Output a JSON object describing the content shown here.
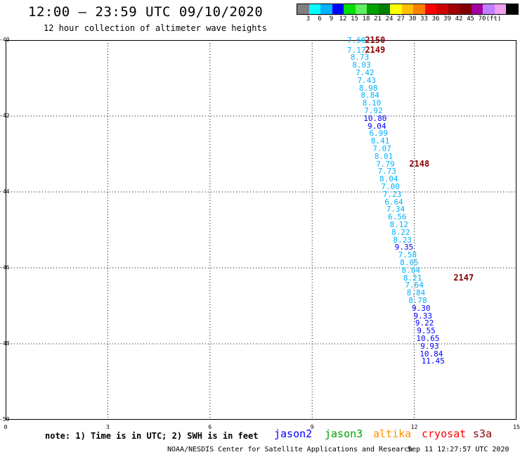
{
  "header": {
    "title": "12:00 – 23:59 UTC 09/10/2020",
    "subtitle": "12 hour collection of altimeter wave heights"
  },
  "colorbar": {
    "colors": [
      "#808080",
      "#00ffff",
      "#00b4ff",
      "#0000ff",
      "#00e000",
      "#60f060",
      "#00a000",
      "#008000",
      "#ffff00",
      "#ffc000",
      "#ff8000",
      "#ff0000",
      "#d00000",
      "#a00000",
      "#800000",
      "#a000a0",
      "#c080ff",
      "#f0a0f0",
      "#000000"
    ],
    "labels": [
      "3",
      "6",
      "9",
      "12",
      "15",
      "18",
      "21",
      "24",
      "27",
      "30",
      "33",
      "36",
      "39",
      "42",
      "45",
      "70",
      "(ft)"
    ]
  },
  "chart_data": {
    "type": "scatter",
    "xlim": [
      0,
      15
    ],
    "ylim": [
      -50,
      -40
    ],
    "x_ticks": [
      "0",
      "3",
      "6",
      "9",
      "12",
      "15"
    ],
    "y_ticks": [
      "-40",
      "-42",
      "-44",
      "-46",
      "-48",
      "-50"
    ],
    "grid": true,
    "points": [
      {
        "lon": 10.3,
        "lat": -40.0,
        "swh": "7.60",
        "color": "#00b4ff"
      },
      {
        "lon": 10.3,
        "lat": -40.25,
        "swh": "7.17",
        "color": "#00b4ff"
      },
      {
        "lon": 10.4,
        "lat": -40.45,
        "swh": "8.73",
        "color": "#00b4ff"
      },
      {
        "lon": 10.45,
        "lat": -40.65,
        "swh": "8.03",
        "color": "#00b4ff"
      },
      {
        "lon": 10.55,
        "lat": -40.85,
        "swh": "7.42",
        "color": "#00b4ff"
      },
      {
        "lon": 10.6,
        "lat": -41.05,
        "swh": "7.43",
        "color": "#00b4ff"
      },
      {
        "lon": 10.65,
        "lat": -41.25,
        "swh": "8.98",
        "color": "#00b4ff"
      },
      {
        "lon": 10.7,
        "lat": -41.45,
        "swh": "8.84",
        "color": "#00b4ff"
      },
      {
        "lon": 10.75,
        "lat": -41.65,
        "swh": "8.10",
        "color": "#00b4ff"
      },
      {
        "lon": 10.8,
        "lat": -41.85,
        "swh": "7.92",
        "color": "#00b4ff"
      },
      {
        "lon": 10.85,
        "lat": -42.05,
        "swh": "10.80",
        "color": "#0000ff"
      },
      {
        "lon": 10.9,
        "lat": -42.25,
        "swh": "9.04",
        "color": "#0000ff"
      },
      {
        "lon": 10.95,
        "lat": -42.45,
        "swh": "6.99",
        "color": "#00b4ff"
      },
      {
        "lon": 11.0,
        "lat": -42.65,
        "swh": "8.41",
        "color": "#00b4ff"
      },
      {
        "lon": 11.05,
        "lat": -42.85,
        "swh": "7.07",
        "color": "#00b4ff"
      },
      {
        "lon": 11.1,
        "lat": -43.05,
        "swh": "8.01",
        "color": "#00b4ff"
      },
      {
        "lon": 11.15,
        "lat": -43.25,
        "swh": "7.79",
        "color": "#00b4ff"
      },
      {
        "lon": 11.2,
        "lat": -43.45,
        "swh": "7.73",
        "color": "#00b4ff"
      },
      {
        "lon": 11.25,
        "lat": -43.65,
        "swh": "8.04",
        "color": "#00b4ff"
      },
      {
        "lon": 11.3,
        "lat": -43.85,
        "swh": "7.00",
        "color": "#00b4ff"
      },
      {
        "lon": 11.35,
        "lat": -44.05,
        "swh": "7.23",
        "color": "#00b4ff"
      },
      {
        "lon": 11.4,
        "lat": -44.25,
        "swh": "6.64",
        "color": "#00b4ff"
      },
      {
        "lon": 11.45,
        "lat": -44.45,
        "swh": "7.34",
        "color": "#00b4ff"
      },
      {
        "lon": 11.5,
        "lat": -44.65,
        "swh": "6.56",
        "color": "#00b4ff"
      },
      {
        "lon": 11.55,
        "lat": -44.85,
        "swh": "8.12",
        "color": "#00b4ff"
      },
      {
        "lon": 11.6,
        "lat": -45.05,
        "swh": "8.22",
        "color": "#00b4ff"
      },
      {
        "lon": 11.65,
        "lat": -45.25,
        "swh": "8.23",
        "color": "#00b4ff"
      },
      {
        "lon": 11.7,
        "lat": -45.45,
        "swh": "9.35",
        "color": "#0000ff"
      },
      {
        "lon": 11.8,
        "lat": -45.65,
        "swh": "7.58",
        "color": "#00b4ff"
      },
      {
        "lon": 11.85,
        "lat": -45.85,
        "swh": "8.05",
        "color": "#00b4ff"
      },
      {
        "lon": 11.9,
        "lat": -46.05,
        "swh": "8.04",
        "color": "#00b4ff"
      },
      {
        "lon": 11.95,
        "lat": -46.25,
        "swh": "8.21",
        "color": "#00b4ff"
      },
      {
        "lon": 12.0,
        "lat": -46.45,
        "swh": "7.64",
        "color": "#00b4ff"
      },
      {
        "lon": 12.05,
        "lat": -46.65,
        "swh": "8.84",
        "color": "#00b4ff"
      },
      {
        "lon": 12.1,
        "lat": -46.85,
        "swh": "8.78",
        "color": "#00b4ff"
      },
      {
        "lon": 12.2,
        "lat": -47.05,
        "swh": "9.30",
        "color": "#0000ff"
      },
      {
        "lon": 12.25,
        "lat": -47.25,
        "swh": "9.33",
        "color": "#0000ff"
      },
      {
        "lon": 12.3,
        "lat": -47.45,
        "swh": "9.22",
        "color": "#0000ff"
      },
      {
        "lon": 12.35,
        "lat": -47.65,
        "swh": "9.55",
        "color": "#0000ff"
      },
      {
        "lon": 12.4,
        "lat": -47.85,
        "swh": "10.65",
        "color": "#0000ff"
      },
      {
        "lon": 12.45,
        "lat": -48.05,
        "swh": "9.93",
        "color": "#0000ff"
      },
      {
        "lon": 12.5,
        "lat": -48.25,
        "swh": "10.84",
        "color": "#0000ff"
      },
      {
        "lon": 12.55,
        "lat": -48.45,
        "swh": "11.45",
        "color": "#0000ff"
      }
    ],
    "revolutions": [
      {
        "label": "2150",
        "lon": 10.55,
        "lat": -40.0
      },
      {
        "label": "2149",
        "lon": 10.55,
        "lat": -40.25
      },
      {
        "label": "2148",
        "lon": 11.85,
        "lat": -43.25
      },
      {
        "label": "2147",
        "lon": 13.15,
        "lat": -46.25
      }
    ]
  },
  "footer": {
    "note": "note: 1) Time is in UTC; 2) SWH is in feet",
    "legend": [
      {
        "name": "jason2",
        "color": "#0000ff"
      },
      {
        "name": "jason3",
        "color": "#00a000"
      },
      {
        "name": "altika",
        "color": "#ff9000"
      },
      {
        "name": "cryosat",
        "color": "#ff0000"
      },
      {
        "name": "s3a",
        "color": "#8b0000"
      }
    ],
    "credit": "NOAA/NESDIS Center for Satellite Applications and Research",
    "timestamp": "Sep 11 12:27:57 UTC 2020"
  }
}
